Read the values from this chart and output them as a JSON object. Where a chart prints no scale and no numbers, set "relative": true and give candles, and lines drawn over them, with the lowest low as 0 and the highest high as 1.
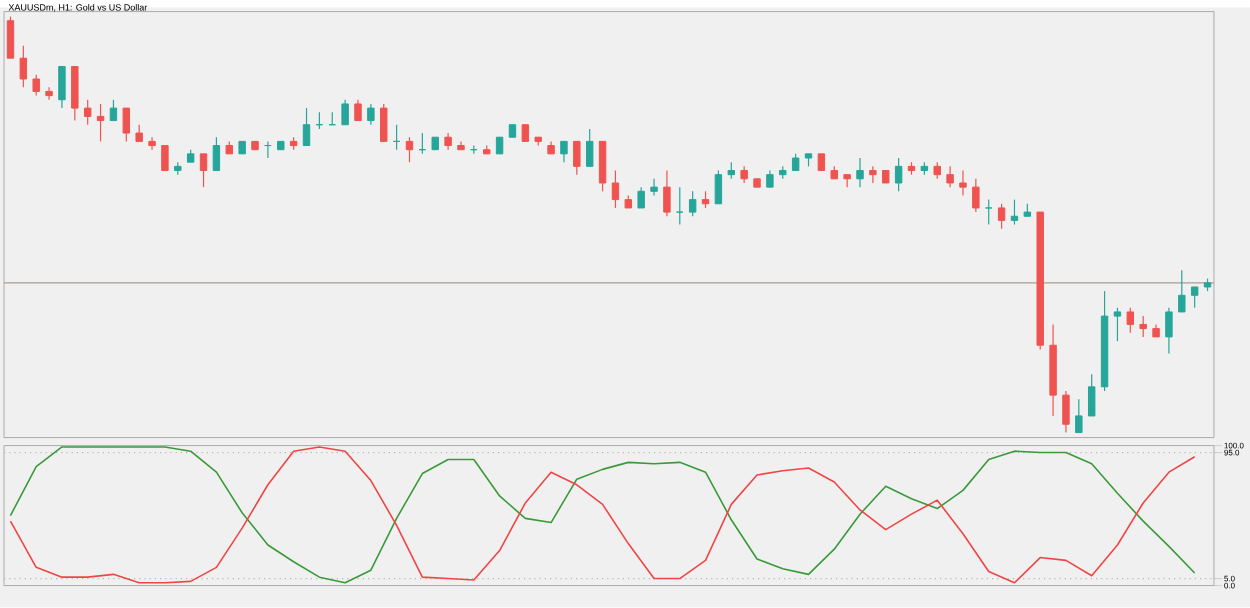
{
  "chart_data": [
    {
      "type": "candlestick",
      "title": "XAUUSDm, H1: Gold vs US Dollar",
      "relative": true,
      "tick_labels": false,
      "categories": [
        null,
        null,
        null,
        null,
        null,
        null,
        null,
        null,
        null,
        null,
        null,
        null,
        null,
        null,
        null,
        null,
        null,
        null,
        null,
        null,
        null,
        null,
        null,
        null,
        null,
        null,
        null,
        null,
        null,
        null,
        null,
        null,
        null,
        null,
        null,
        null,
        null,
        null,
        null,
        null,
        null,
        null,
        null,
        null,
        null,
        null,
        null,
        null,
        null,
        null,
        null,
        null,
        null,
        null,
        null,
        null,
        null,
        null,
        null,
        null,
        null,
        null,
        null,
        null,
        null,
        null,
        null,
        null,
        null,
        null,
        null,
        null,
        null,
        null,
        null,
        null,
        null,
        null,
        null,
        null,
        null,
        null,
        null,
        null,
        null,
        null,
        null,
        null,
        null,
        null,
        null,
        null,
        null,
        null
      ],
      "ohlc": [
        [
          0.99,
          1.0,
          0.9,
          0.9
        ],
        [
          0.9,
          0.93,
          0.83,
          0.85
        ],
        [
          0.85,
          0.86,
          0.81,
          0.82
        ],
        [
          0.82,
          0.83,
          0.8,
          0.81
        ],
        [
          0.8,
          0.88,
          0.78,
          0.88
        ],
        [
          0.88,
          0.88,
          0.75,
          0.78
        ],
        [
          0.78,
          0.8,
          0.74,
          0.76
        ],
        [
          0.76,
          0.79,
          0.7,
          0.75
        ],
        [
          0.75,
          0.8,
          0.75,
          0.78
        ],
        [
          0.78,
          0.78,
          0.7,
          0.72
        ],
        [
          0.72,
          0.74,
          0.7,
          0.7
        ],
        [
          0.7,
          0.71,
          0.68,
          0.69
        ],
        [
          0.69,
          0.69,
          0.63,
          0.63
        ],
        [
          0.63,
          0.65,
          0.62,
          0.64
        ],
        [
          0.65,
          0.68,
          0.65,
          0.67
        ],
        [
          0.67,
          0.67,
          0.59,
          0.63
        ],
        [
          0.63,
          0.71,
          0.63,
          0.69
        ],
        [
          0.69,
          0.7,
          0.67,
          0.67
        ],
        [
          0.67,
          0.7,
          0.67,
          0.7
        ],
        [
          0.7,
          0.7,
          0.68,
          0.68
        ],
        [
          0.69,
          0.7,
          0.66,
          0.69
        ],
        [
          0.68,
          0.7,
          0.68,
          0.7
        ],
        [
          0.7,
          0.71,
          0.68,
          0.69
        ],
        [
          0.69,
          0.78,
          0.69,
          0.74
        ],
        [
          0.74,
          0.77,
          0.73,
          0.74
        ],
        [
          0.74,
          0.77,
          0.74,
          0.74
        ],
        [
          0.74,
          0.8,
          0.74,
          0.79
        ],
        [
          0.79,
          0.8,
          0.75,
          0.75
        ],
        [
          0.75,
          0.79,
          0.74,
          0.78
        ],
        [
          0.78,
          0.79,
          0.7,
          0.7
        ],
        [
          0.7,
          0.74,
          0.68,
          0.7
        ],
        [
          0.7,
          0.71,
          0.65,
          0.68
        ],
        [
          0.68,
          0.72,
          0.67,
          0.68
        ],
        [
          0.68,
          0.71,
          0.68,
          0.71
        ],
        [
          0.71,
          0.72,
          0.68,
          0.69
        ],
        [
          0.69,
          0.7,
          0.68,
          0.68
        ],
        [
          0.68,
          0.69,
          0.67,
          0.68
        ],
        [
          0.68,
          0.69,
          0.67,
          0.67
        ],
        [
          0.67,
          0.71,
          0.67,
          0.71
        ],
        [
          0.71,
          0.74,
          0.71,
          0.74
        ],
        [
          0.74,
          0.74,
          0.7,
          0.7
        ],
        [
          0.71,
          0.71,
          0.69,
          0.7
        ],
        [
          0.69,
          0.7,
          0.67,
          0.67
        ],
        [
          0.67,
          0.7,
          0.65,
          0.7
        ],
        [
          0.7,
          0.7,
          0.62,
          0.64
        ],
        [
          0.64,
          0.73,
          0.64,
          0.7
        ],
        [
          0.7,
          0.7,
          0.58,
          0.6
        ],
        [
          0.6,
          0.63,
          0.54,
          0.56
        ],
        [
          0.56,
          0.57,
          0.54,
          0.54
        ],
        [
          0.54,
          0.59,
          0.54,
          0.58
        ],
        [
          0.58,
          0.61,
          0.57,
          0.59
        ],
        [
          0.59,
          0.63,
          0.52,
          0.53
        ],
        [
          0.53,
          0.59,
          0.5,
          0.53
        ],
        [
          0.53,
          0.58,
          0.52,
          0.56
        ],
        [
          0.56,
          0.58,
          0.54,
          0.55
        ],
        [
          0.55,
          0.63,
          0.55,
          0.62
        ],
        [
          0.62,
          0.65,
          0.61,
          0.63
        ],
        [
          0.63,
          0.64,
          0.6,
          0.61
        ],
        [
          0.61,
          0.61,
          0.59,
          0.59
        ],
        [
          0.59,
          0.63,
          0.59,
          0.62
        ],
        [
          0.62,
          0.64,
          0.61,
          0.63
        ],
        [
          0.63,
          0.67,
          0.63,
          0.66
        ],
        [
          0.66,
          0.67,
          0.64,
          0.67
        ],
        [
          0.67,
          0.67,
          0.63,
          0.63
        ],
        [
          0.63,
          0.64,
          0.61,
          0.61
        ],
        [
          0.62,
          0.62,
          0.59,
          0.61
        ],
        [
          0.61,
          0.66,
          0.59,
          0.63
        ],
        [
          0.63,
          0.64,
          0.6,
          0.62
        ],
        [
          0.63,
          0.63,
          0.6,
          0.6
        ],
        [
          0.6,
          0.66,
          0.58,
          0.64
        ],
        [
          0.64,
          0.65,
          0.62,
          0.63
        ],
        [
          0.63,
          0.65,
          0.62,
          0.64
        ],
        [
          0.64,
          0.65,
          0.61,
          0.62
        ],
        [
          0.62,
          0.64,
          0.59,
          0.6
        ],
        [
          0.6,
          0.63,
          0.57,
          0.59
        ],
        [
          0.59,
          0.61,
          0.53,
          0.54
        ],
        [
          0.54,
          0.56,
          0.5,
          0.54
        ],
        [
          0.54,
          0.55,
          0.49,
          0.51
        ],
        [
          0.51,
          0.56,
          0.5,
          0.52
        ],
        [
          0.52,
          0.55,
          0.52,
          0.53
        ],
        [
          0.53,
          0.53,
          0.2,
          0.21
        ],
        [
          0.21,
          0.26,
          0.04,
          0.09
        ],
        [
          0.09,
          0.1,
          0.0,
          0.02
        ],
        [
          0.0,
          0.08,
          0.0,
          0.04
        ],
        [
          0.04,
          0.14,
          0.04,
          0.11
        ],
        [
          0.11,
          0.34,
          0.1,
          0.28
        ],
        [
          0.28,
          0.3,
          0.22,
          0.29
        ],
        [
          0.29,
          0.3,
          0.24,
          0.26
        ],
        [
          0.26,
          0.28,
          0.23,
          0.25
        ],
        [
          0.25,
          0.26,
          0.23,
          0.23
        ],
        [
          0.23,
          0.3,
          0.19,
          0.29
        ],
        [
          0.29,
          0.39,
          0.29,
          0.33
        ],
        [
          0.33,
          0.35,
          0.3,
          0.35
        ],
        [
          0.35,
          0.37,
          0.34,
          0.36
        ]
      ],
      "ref_lines": [
        {
          "axis": "y",
          "value": 0.36,
          "color": "#a89c94",
          "line_style": "solid"
        }
      ]
    },
    {
      "type": "line",
      "tick_labels": "y",
      "ylim": [
        0,
        100
      ],
      "categories": [
        null,
        null,
        null,
        null,
        null,
        null,
        null,
        null,
        null,
        null,
        null,
        null,
        null,
        null,
        null,
        null,
        null,
        null,
        null,
        null,
        null,
        null,
        null,
        null,
        null,
        null,
        null,
        null,
        null,
        null,
        null,
        null,
        null,
        null,
        null,
        null,
        null,
        null,
        null,
        null,
        null,
        null,
        null,
        null,
        null,
        null,
        null,
        null,
        null,
        null,
        null,
        null,
        null,
        null,
        null,
        null,
        null,
        null,
        null,
        null,
        null,
        null,
        null,
        null,
        null,
        null,
        null,
        null,
        null,
        null,
        null,
        null,
        null,
        null,
        null,
        null,
        null,
        null,
        null,
        null,
        null,
        null,
        null,
        null,
        null,
        null,
        null,
        null,
        null,
        null,
        null,
        null,
        null,
        null
      ],
      "yticks": [
        {
          "value": 0,
          "label": "0.0"
        },
        {
          "value": 5,
          "label": "5.0"
        },
        {
          "value": 95,
          "label": "95.0"
        },
        {
          "value": 100,
          "label": "100.0"
        }
      ],
      "series": [
        {
          "color": "#3a9a3a",
          "values": [
            50,
            null,
            85,
            null,
            99,
            null,
            99,
            null,
            99,
            null,
            99,
            null,
            99,
            null,
            96,
            null,
            81,
            null,
            52,
            null,
            29,
            null,
            17,
            null,
            6,
            null,
            2,
            null,
            11,
            null,
            48,
            null,
            80,
            null,
            90,
            null,
            90,
            null,
            64,
            null,
            48,
            null,
            45,
            null,
            76,
            null,
            83,
            null,
            88,
            null,
            87,
            null,
            88,
            null,
            81,
            null,
            47,
            null,
            19,
            null,
            12,
            null,
            8,
            null,
            26,
            null,
            51,
            null,
            71,
            null,
            62,
            null,
            55,
            null,
            68,
            null,
            90,
            null,
            96,
            null,
            95,
            null,
            95,
            null,
            87,
            null,
            66,
            null,
            46,
            null,
            28,
            null,
            9,
            null
          ]
        },
        {
          "color": "#f04545",
          "values": [
            46,
            null,
            13,
            null,
            6,
            null,
            6,
            null,
            8,
            null,
            2,
            null,
            2,
            null,
            3,
            null,
            13,
            null,
            41,
            null,
            72,
            null,
            96,
            null,
            99,
            null,
            96,
            null,
            75,
            null,
            43,
            null,
            6,
            null,
            5,
            null,
            4,
            null,
            25,
            null,
            59,
            null,
            81,
            null,
            72,
            null,
            58,
            null,
            30,
            null,
            5,
            null,
            5,
            null,
            18,
            null,
            58,
            null,
            79,
            null,
            82,
            null,
            84,
            null,
            74,
            null,
            54,
            null,
            40,
            null,
            51,
            null,
            61,
            null,
            37,
            null,
            10,
            null,
            2,
            null,
            20,
            null,
            18,
            null,
            7,
            null,
            29,
            null,
            59,
            null,
            81,
            null,
            92,
            null
          ]
        }
      ],
      "ref_lines": [
        {
          "axis": "y",
          "value": 95,
          "color": "#b4b4b4",
          "line_style": "dotted"
        },
        {
          "axis": "y",
          "value": 5,
          "color": "#b4b4b4",
          "line_style": "dotted"
        }
      ]
    }
  ]
}
